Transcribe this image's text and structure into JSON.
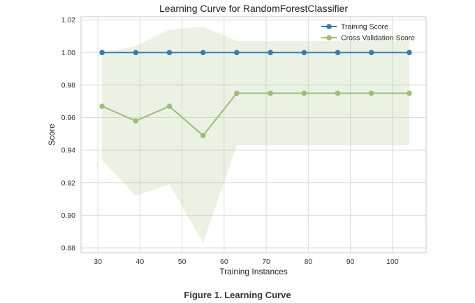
{
  "chart_data": {
    "type": "line",
    "title": "Learning Curve for RandomForestClassifier",
    "xlabel": "Training Instances",
    "ylabel": "Score",
    "xlim": [
      26,
      108
    ],
    "ylim": [
      0.877,
      1.022
    ],
    "xticks": [
      30,
      40,
      50,
      60,
      70,
      80,
      90,
      100
    ],
    "yticks": [
      0.88,
      0.9,
      0.92,
      0.94,
      0.96,
      0.98,
      1.0,
      1.02
    ],
    "grid": true,
    "legend_position": "top-right",
    "x": [
      31,
      39,
      47,
      55,
      63,
      71,
      79,
      87,
      95,
      104
    ],
    "series": [
      {
        "name": "Training Score",
        "color": "#3a7ab5",
        "values": [
          1.0,
          1.0,
          1.0,
          1.0,
          1.0,
          1.0,
          1.0,
          1.0,
          1.0,
          1.0
        ],
        "band_lower": [
          1.0,
          1.0,
          1.0,
          1.0,
          1.0,
          1.0,
          1.0,
          1.0,
          1.0,
          1.0
        ],
        "band_upper": [
          1.0,
          1.0,
          1.0,
          1.0,
          1.0,
          1.0,
          1.0,
          1.0,
          1.0,
          1.0
        ]
      },
      {
        "name": "Cross Validation Score",
        "color": "#9dbd74",
        "values": [
          0.967,
          0.958,
          0.967,
          0.949,
          0.975,
          0.975,
          0.975,
          0.975,
          0.975,
          0.975
        ],
        "band_lower": [
          0.934,
          0.912,
          0.919,
          0.883,
          0.943,
          0.943,
          0.943,
          0.943,
          0.943,
          0.943
        ],
        "band_upper": [
          1.0,
          1.004,
          1.014,
          1.016,
          1.007,
          1.007,
          1.007,
          1.007,
          1.007,
          1.007
        ]
      }
    ]
  },
  "caption": "Figure 1. Learning Curve"
}
